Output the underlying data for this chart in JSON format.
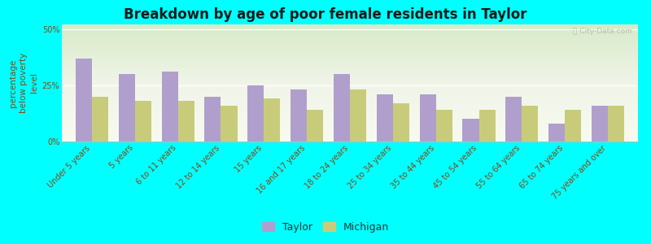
{
  "title": "Breakdown by age of poor female residents in Taylor",
  "ylabel": "percentage\nbelow poverty\nlevel",
  "categories": [
    "Under 5 years",
    "5 years",
    "6 to 11 years",
    "12 to 14 years",
    "15 years",
    "16 and 17 years",
    "18 to 24 years",
    "25 to 34 years",
    "35 to 44 years",
    "45 to 54 years",
    "55 to 64 years",
    "65 to 74 years",
    "75 years and over"
  ],
  "taylor": [
    37,
    30,
    31,
    20,
    25,
    23,
    30,
    21,
    21,
    10,
    20,
    8,
    16
  ],
  "michigan": [
    20,
    18,
    18,
    16,
    19,
    14,
    23,
    17,
    14,
    14,
    16,
    14,
    16
  ],
  "taylor_color": "#b09fcc",
  "michigan_color": "#c8cc7a",
  "outer_background": "#00ffff",
  "ylim": [
    0,
    52
  ],
  "yticks": [
    0,
    25,
    50
  ],
  "ytick_labels": [
    "0%",
    "25%",
    "50%"
  ],
  "bar_width": 0.38,
  "title_fontsize": 12,
  "axis_label_fontsize": 7.5,
  "tick_fontsize": 7,
  "legend_taylor": "Taylor",
  "legend_michigan": "Michigan",
  "watermark": "ⓘ City-Data.com"
}
